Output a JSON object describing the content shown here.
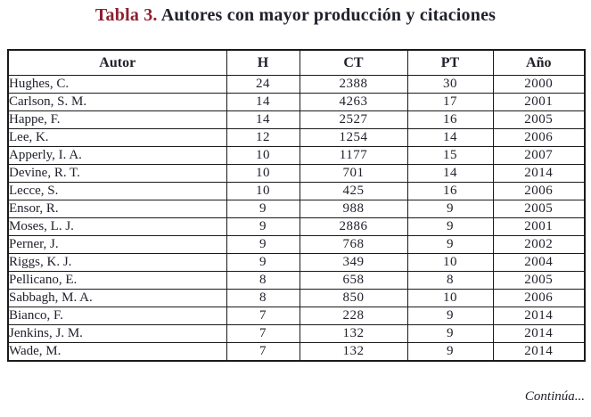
{
  "title": {
    "accent": "Tabla 3.",
    "rest": " Autores con mayor producción y citaciones"
  },
  "table": {
    "columns": [
      "Autor",
      "H",
      "CT",
      "PT",
      "Año"
    ],
    "rows": [
      {
        "autor": "Hughes, C.",
        "h": "24",
        "ct": "2388",
        "pt": "30",
        "ano": "2000"
      },
      {
        "autor": "Carlson, S. M.",
        "h": "14",
        "ct": "4263",
        "pt": "17",
        "ano": "2001"
      },
      {
        "autor": "Happe, F.",
        "h": "14",
        "ct": "2527",
        "pt": "16",
        "ano": "2005"
      },
      {
        "autor": "Lee, K.",
        "h": "12",
        "ct": "1254",
        "pt": "14",
        "ano": "2006"
      },
      {
        "autor": "Apperly, I. A.",
        "h": "10",
        "ct": "1177",
        "pt": "15",
        "ano": "2007"
      },
      {
        "autor": "Devine, R. T.",
        "h": "10",
        "ct": "701",
        "pt": "14",
        "ano": "2014"
      },
      {
        "autor": "Lecce, S.",
        "h": "10",
        "ct": "425",
        "pt": "16",
        "ano": "2006"
      },
      {
        "autor": "Ensor, R.",
        "h": "9",
        "ct": "988",
        "pt": "9",
        "ano": "2005"
      },
      {
        "autor": "Moses, L. J.",
        "h": "9",
        "ct": "2886",
        "pt": "9",
        "ano": "2001"
      },
      {
        "autor": "Perner, J.",
        "h": "9",
        "ct": "768",
        "pt": "9",
        "ano": "2002"
      },
      {
        "autor": "Riggs, K. J.",
        "h": "9",
        "ct": "349",
        "pt": "10",
        "ano": "2004"
      },
      {
        "autor": "Pellicano, E.",
        "h": "8",
        "ct": "658",
        "pt": "8",
        "ano": "2005"
      },
      {
        "autor": "Sabbagh, M. A.",
        "h": "8",
        "ct": "850",
        "pt": "10",
        "ano": "2006"
      },
      {
        "autor": "Bianco, F.",
        "h": "7",
        "ct": "228",
        "pt": "9",
        "ano": "2014"
      },
      {
        "autor": "Jenkins, J. M.",
        "h": "7",
        "ct": "132",
        "pt": "9",
        "ano": "2014"
      },
      {
        "autor": "Wade, M.",
        "h": "7",
        "ct": "132",
        "pt": "9",
        "ano": "2014"
      }
    ]
  },
  "footer": {
    "continua": "Continúa..."
  },
  "colors": {
    "title_accent": "#8e1f2f",
    "text": "#20222c",
    "border": "#1a1a1a",
    "background": "#ffffff"
  }
}
